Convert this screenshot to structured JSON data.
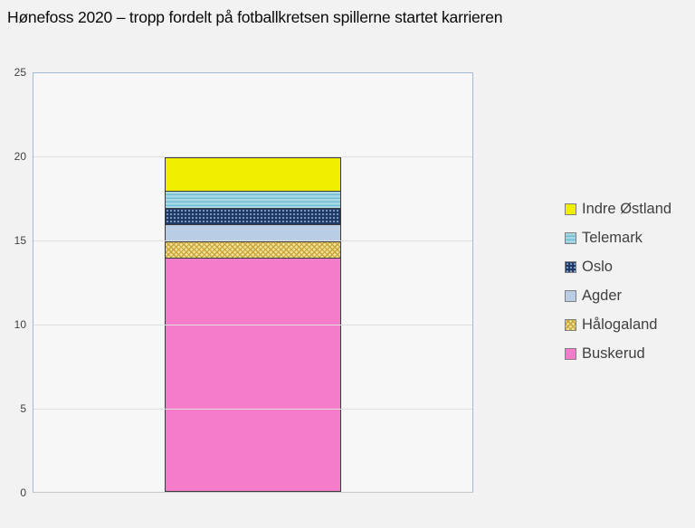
{
  "title": "Hønefoss 2020 – tropp fordelt på fotballkretsen spillerne startet karrieren",
  "colors": {
    "page_background": "#F2F2F2",
    "plot_background": "#F7F7F7",
    "plot_border": "#A5B8D4",
    "axis_line": "#C6C6C6",
    "gridline": "#DFDFDF",
    "bar_outline": "#3A3A3A",
    "tick_text": "#404040",
    "legend_text": "#404040",
    "title_text": "#0A0A0A"
  },
  "chart_data": {
    "type": "bar",
    "subtype": "stacked-column",
    "title": "Hønefoss 2020 – tropp fordelt på fotballkretsen spillerne startet karrieren",
    "categories": [
      ""
    ],
    "xlabel": "",
    "ylabel": "",
    "ylim": [
      0,
      25
    ],
    "yticks": [
      0,
      5,
      10,
      15,
      20,
      25
    ],
    "grid": true,
    "legend_position": "right",
    "total": 20,
    "series": [
      {
        "name": "Buskerud",
        "value": 14,
        "color": "#F57CCB",
        "pattern": "solid"
      },
      {
        "name": "Hålogaland",
        "value": 1,
        "color": "#EFDF90",
        "pattern": "crosshatch",
        "pattern_color": "#C8A33B"
      },
      {
        "name": "Agder",
        "value": 1,
        "color": "#B9CDE5",
        "pattern": "solid"
      },
      {
        "name": "Oslo",
        "value": 1,
        "color": "#1F3864",
        "pattern": "dots",
        "pattern_color": "#7D9EC9"
      },
      {
        "name": "Telemark",
        "value": 1,
        "color": "#A9D8E4",
        "pattern": "hstripes",
        "pattern_color": "#6FBDD3"
      },
      {
        "name": "Indre Østland",
        "value": 2,
        "color": "#F2EE00",
        "pattern": "solid"
      }
    ]
  }
}
